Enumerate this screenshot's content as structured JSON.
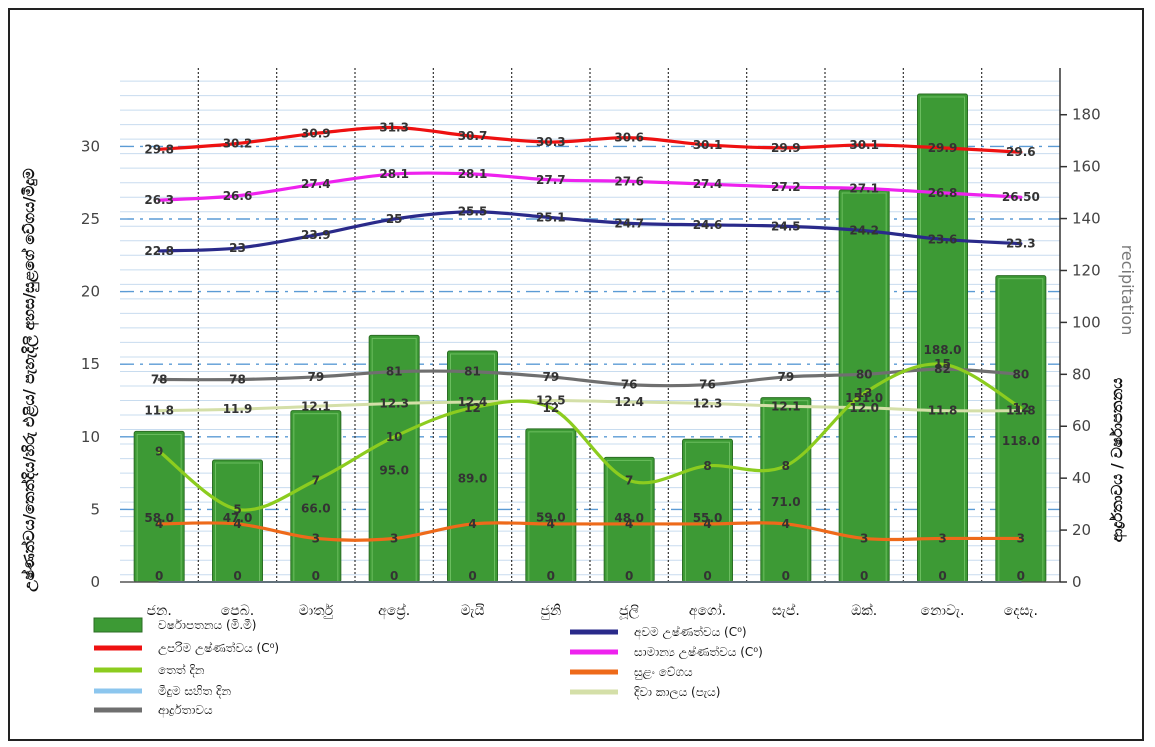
{
  "chart_data": {
    "type": "bar",
    "categories": [
      "ජන.",
      "පෙබ.",
      "මාර්තු",
      "අප්‍රේ.",
      "මැයි",
      "ජුනි",
      "ජූලි",
      "අගෝ.",
      "සැප්.",
      "ඔක්.",
      "නොවැ.",
      "දෙසැ."
    ],
    "ylabel": "උෂ්ණත්වය/තෙත්දිය/හිරු එළිය/ පැහැදිලි අහස/සුළගේ වේගය/මීදුම",
    "ylabel_right": "ආර්ද්‍රතාවය / වර්ෂාපතනය",
    "ylabel_right_ghost": "recipitation",
    "ylim": [
      0,
      35.4
    ],
    "ylim_right": [
      0,
      198
    ],
    "yticks": [
      0,
      5,
      10,
      15,
      20,
      25,
      30
    ],
    "yticks_right": [
      0,
      20,
      40,
      60,
      80,
      100,
      120,
      140,
      160,
      180
    ],
    "grid": true,
    "legend_position": "bottom",
    "bars": {
      "name": "වර්ෂාපතනය (මි.මී)",
      "color": "#3d9a35",
      "values": [
        58.0,
        47.0,
        66.0,
        95.0,
        89.0,
        59.0,
        48.0,
        55.0,
        71.0,
        151.0,
        188.0,
        118.0
      ],
      "labels": [
        "58.0",
        "47.0",
        "66.0",
        "95.0",
        "89.0",
        "59.0",
        "48.0",
        "55.0",
        "71.0",
        "151.0",
        "188.0",
        "118.0"
      ],
      "fog_days": [
        0,
        0,
        0,
        0,
        0,
        0,
        0,
        0,
        0,
        0,
        0,
        0
      ]
    },
    "series": [
      {
        "name": "උපරිම උෂ්ණත්වය (C⁰)",
        "color": "#ee1111",
        "axis": "left",
        "values": [
          29.8,
          30.2,
          30.9,
          31.3,
          30.7,
          30.3,
          30.6,
          30.1,
          29.9,
          30.1,
          29.9,
          29.6
        ],
        "labels": [
          "29.8",
          "30.2",
          "30.9",
          "31.3",
          "30.7",
          "30.3",
          "30.6",
          "30.1",
          "29.9",
          "30.1",
          "29.9",
          "29.6"
        ]
      },
      {
        "name": "සාමාන්‍ය උෂ්ණත්වය (C⁰)",
        "color": "#ee22ee",
        "axis": "left",
        "values": [
          26.3,
          26.6,
          27.4,
          28.1,
          28.1,
          27.7,
          27.6,
          27.4,
          27.2,
          27.1,
          26.8,
          26.5
        ],
        "labels": [
          "26.3",
          "26.6",
          "27.4",
          "28.1",
          "28.1",
          "27.7",
          "27.6",
          "27.4",
          "27.2",
          "27.1",
          "26.8",
          "26.50"
        ]
      },
      {
        "name": "අවම උෂ්ණත්වය (C⁰)",
        "color": "#2a2a8a",
        "axis": "left",
        "values": [
          22.8,
          23.0,
          23.9,
          25.0,
          25.5,
          25.1,
          24.7,
          24.6,
          24.5,
          24.2,
          23.6,
          23.3
        ],
        "labels": [
          "22.8",
          "23",
          "23.9",
          "25",
          "25.5",
          "25.1",
          "24.7",
          "24.6",
          "24.5",
          "24.2",
          "23.6",
          "23.3"
        ]
      },
      {
        "name": "ආර්ද්‍රතාවය",
        "color": "#6f6f6f",
        "axis": "right",
        "values": [
          78,
          78,
          79,
          81,
          81,
          79,
          76,
          76,
          79,
          80,
          82,
          80
        ],
        "labels": [
          "78",
          "78",
          "79",
          "81",
          "81",
          "79",
          "76",
          "76",
          "79",
          "80",
          "82",
          "80"
        ]
      },
      {
        "name": "දිවා කාලය (පැය)",
        "color": "#d4dfa8",
        "axis": "left",
        "values": [
          11.8,
          11.9,
          12.1,
          12.3,
          12.4,
          12.5,
          12.4,
          12.3,
          12.1,
          12.0,
          11.8,
          11.8
        ],
        "labels": [
          "11.8",
          "11.9",
          "12.1",
          "12.3",
          "12.4",
          "12.5",
          "12.4",
          "12.3",
          "12.1",
          "12.0",
          "11.8",
          "11.8"
        ]
      },
      {
        "name": "තෙත් දින",
        "color": "#8ccc1f",
        "axis": "left",
        "values": [
          9,
          5,
          7,
          10,
          12,
          12,
          7,
          8,
          8,
          13,
          15,
          12
        ],
        "labels": [
          "9",
          "5",
          "7",
          "10",
          "12",
          "12",
          "7",
          "8",
          "8",
          "13",
          "15",
          "12"
        ]
      },
      {
        "name": "සුළං වේගය",
        "color": "#ee6a1a",
        "axis": "left",
        "values": [
          4,
          4,
          3,
          3,
          4,
          4,
          4,
          4,
          4,
          3,
          3,
          3
        ],
        "labels": [
          "4",
          "4",
          "3",
          "3",
          "4",
          "4",
          "4",
          "4",
          "4",
          "3",
          "3",
          "3"
        ]
      },
      {
        "name": "මීදුම සහිත දින",
        "color": "#8cc6ee",
        "axis": "left",
        "values": [
          0,
          0,
          0,
          0,
          0,
          0,
          0,
          0,
          0,
          0,
          0,
          0
        ]
      }
    ],
    "legend": [
      {
        "name": "වර්ෂාපතනය (මි.මී)",
        "color": "#3d9a35",
        "kind": "bar"
      },
      {
        "name": "අවම උෂ්ණත්වය (C⁰)",
        "color": "#2a2a8a",
        "kind": "line"
      },
      {
        "name": "උපරිම උෂ්ණත්වය (C⁰)",
        "color": "#ee1111",
        "kind": "line"
      },
      {
        "name": "සාමාන්‍ය උෂ්ණත්වය (C⁰)",
        "color": "#ee22ee",
        "kind": "line"
      },
      {
        "name": "තෙත් දින",
        "color": "#8ccc1f",
        "kind": "line"
      },
      {
        "name": "සුළං වේගය",
        "color": "#ee6a1a",
        "kind": "line"
      },
      {
        "name": "මීදුම සහිත දින",
        "color": "#8cc6ee",
        "kind": "line"
      },
      {
        "name": "දිවා කාලය (පැය)",
        "color": "#d4dfa8",
        "kind": "line"
      },
      {
        "name": "ආර්ද්‍රතාවය",
        "color": "#6f6f6f",
        "kind": "line"
      }
    ]
  }
}
